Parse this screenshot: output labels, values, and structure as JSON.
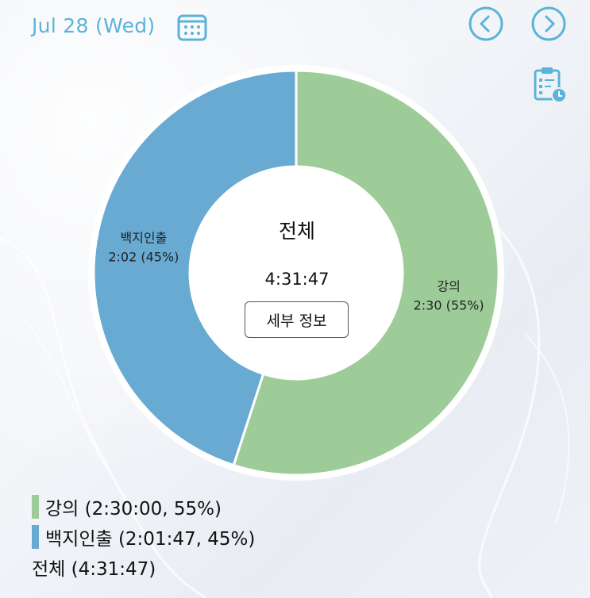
{
  "header": {
    "date": "Jul 28 (Wed)",
    "calendar_icon": "calendar-icon",
    "prev_icon": "chevron-left-icon",
    "next_icon": "chevron-right-icon",
    "clipboard_icon": "clipboard-clock-icon",
    "accent_color": "#5bb3d9"
  },
  "center": {
    "title": "전체",
    "total_time": "4:31:47",
    "details_button": "세부 정보"
  },
  "chart_data": {
    "type": "pie",
    "donut": true,
    "slices": [
      {
        "name": "강의",
        "label_time": "2:30",
        "percent": 55,
        "value_seconds": 9000,
        "color": "#9dcc98",
        "label_line1": "강의",
        "label_line2": "2:30 (55%)"
      },
      {
        "name": "백지인출",
        "label_time": "2:02",
        "percent": 45,
        "value_seconds": 7307,
        "color": "#68aad2",
        "label_line1": "백지인출",
        "label_line2": "2:02 (45%)"
      }
    ]
  },
  "legend": {
    "items": [
      {
        "text": "강의 (2:30:00, 55%)",
        "color": "#9dcc98"
      },
      {
        "text": "백지인출 (2:01:47, 45%)",
        "color": "#68aad2"
      }
    ],
    "total": "전체 (4:31:47)"
  }
}
